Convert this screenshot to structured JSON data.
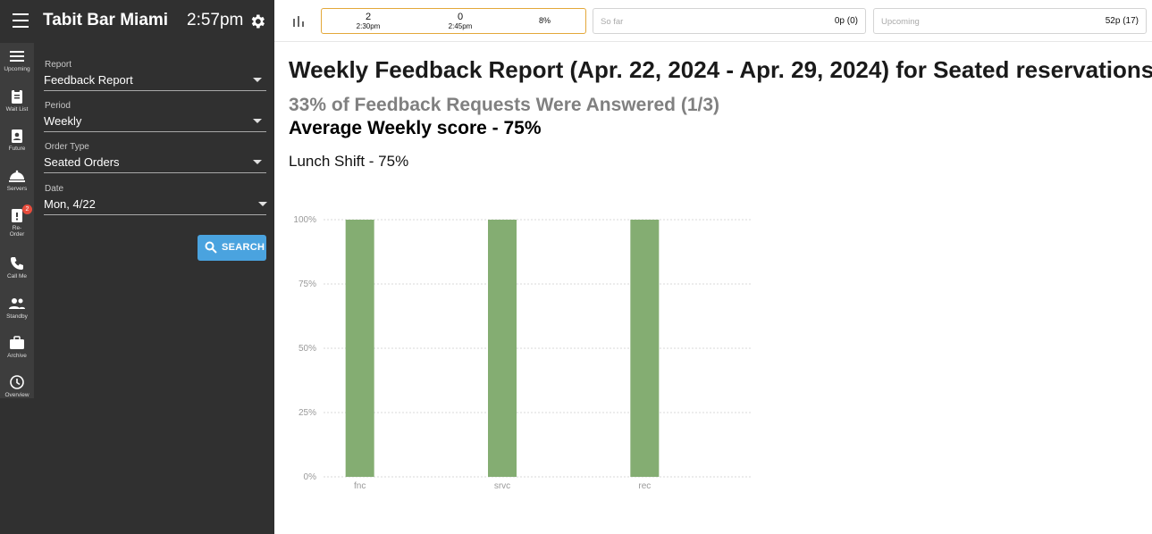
{
  "app": {
    "title": "Tabit Bar Miami",
    "time": "2:57pm"
  },
  "nav": {
    "items": [
      {
        "label": "Upcoming",
        "icon": "list-icon"
      },
      {
        "label": "Wait List",
        "icon": "clipboard-icon"
      },
      {
        "label": "Future",
        "icon": "clipboard-user-icon"
      },
      {
        "label": "Servers",
        "icon": "cloche-icon"
      },
      {
        "label": "Re-Order",
        "icon": "clipboard-alert-icon",
        "badge": "2"
      },
      {
        "label": "Call Me",
        "icon": "phone-icon"
      },
      {
        "label": "Standby",
        "icon": "people-icon"
      },
      {
        "label": "Archive",
        "icon": "briefcase-icon"
      },
      {
        "label": "Overview",
        "icon": "clock-icon"
      }
    ]
  },
  "filters": {
    "report": {
      "label": "Report",
      "value": "Feedback Report"
    },
    "period": {
      "label": "Period",
      "value": "Weekly"
    },
    "order_type": {
      "label": "Order Type",
      "value": "Seated Orders"
    },
    "date": {
      "label": "Date",
      "value": "Mon, 4/22"
    },
    "search_label": "SEARCH"
  },
  "header": {
    "slots": [
      {
        "count": "2",
        "time": "2:30pm"
      },
      {
        "count": "0",
        "time": "2:45pm"
      }
    ],
    "slot_percent": "8%",
    "so_far": {
      "label": "So far",
      "value": "0p (0)"
    },
    "upcoming": {
      "label": "Upcoming",
      "value": "52p (17)"
    }
  },
  "report": {
    "title": "Weekly Feedback Report (Apr. 22, 2024 - Apr. 29, 2024) for Seated reservations",
    "answered": "33% of Feedback Requests Were Answered (1/3)",
    "average": "Average Weekly score - 75%",
    "shift": "Lunch Shift - 75%"
  },
  "colors": {
    "bar": "#84ad72",
    "panel": "#303030",
    "accent": "#4aa3df"
  },
  "chart_data": {
    "type": "bar",
    "categories": [
      "fnc",
      "srvc",
      "rec"
    ],
    "values": [
      100,
      100,
      100
    ],
    "yticks": [
      "0%",
      "25%",
      "50%",
      "75%",
      "100%"
    ],
    "ylim": [
      0,
      100
    ],
    "grid": true
  }
}
